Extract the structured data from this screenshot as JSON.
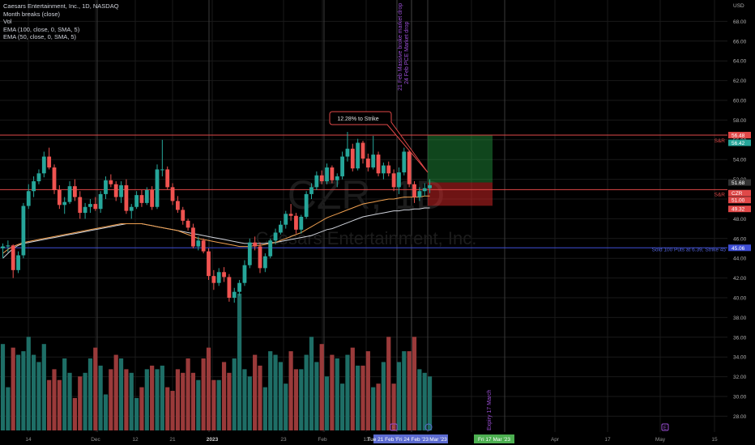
{
  "header": {
    "title": "Caesars Entertainment, Inc., 1D, NASDAQ",
    "indicators": [
      "Month breaks (close)",
      "Vol",
      "EMA (100, close, 0, SMA, 5)",
      "EMA (50, close, 0, SMA, 5)"
    ]
  },
  "watermark": {
    "symbol": "CZR, 1D",
    "name": "Caesars Entertainment, Inc."
  },
  "colors": {
    "background": "#000000",
    "up": "#26a69a",
    "down": "#ef5350",
    "grid": "#1a1a1a",
    "ema100": "#d1d4dc",
    "ema50": "#f0a050",
    "sr_line": "#e04848",
    "puts_line": "#3f4fd6",
    "month_break": "#3a3a3a",
    "annotation_purple": "#9c4fd6",
    "label_green": "#4caf50",
    "label_blue": "#5b6ad0"
  },
  "price_axis": {
    "currency": "USD",
    "ticks": [
      "28.00",
      "30.00",
      "32.00",
      "34.00",
      "36.00",
      "38.00",
      "40.00",
      "42.00",
      "44.00",
      "46.00",
      "48.00",
      "50.00",
      "52.00",
      "54.00",
      "56.00",
      "58.00",
      "60.00",
      "62.00",
      "64.00",
      "66.00",
      "68.00"
    ],
    "labels": [
      {
        "text": "56.48",
        "price": 56.48,
        "color": "#e04848"
      },
      {
        "text": "56.42",
        "price": 55.7,
        "color": "#26a69a"
      },
      {
        "text": "51.68",
        "price": 51.68,
        "color": "#333333"
      },
      {
        "text": "CZR",
        "price": 50.6,
        "color": "#e04848"
      },
      {
        "text": "51.00",
        "price": 49.9,
        "color": "#e04848"
      },
      {
        "text": "49.32",
        "price": 49.0,
        "color": "#e04848"
      },
      {
        "text": "45.06",
        "price": 45.06,
        "color": "#3f4fd6"
      }
    ]
  },
  "time_axis": {
    "ticks": [
      "14",
      "Dec",
      "12",
      "21",
      "2023",
      "23",
      "Feb",
      "13",
      "Apr",
      "17",
      "May",
      "15"
    ],
    "highlights": [
      "Tue 21 Feb '23",
      "Fri 24 Feb '23",
      "Mar '23",
      "Fri 17 Mar '23"
    ],
    "badges": [
      "E",
      "E"
    ]
  },
  "lines": {
    "sr_upper": {
      "price": 56.48,
      "label": "S&R"
    },
    "sr_lower": {
      "price": 50.95,
      "label": "S&R"
    },
    "puts": {
      "price": 45.06,
      "label": "Sold 100 Puts at 6.39, Strike 45"
    }
  },
  "annotations": {
    "callout": "12.28% to Strike",
    "event1": "21 Feb Massive broke market drop",
    "event2": "24 Feb PCE Market drop",
    "expiry": "Expiry 17 March"
  },
  "chart_data": {
    "type": "candlestick",
    "ylim": [
      27,
      70
    ],
    "candles": [
      [
        45.0,
        45.5,
        44.0,
        45.2
      ],
      [
        45.2,
        45.8,
        44.6,
        45.3
      ],
      [
        45.3,
        45.4,
        42.0,
        42.8
      ],
      [
        42.8,
        44.7,
        42.5,
        44.3
      ],
      [
        44.3,
        49.6,
        44.0,
        49.3
      ],
      [
        49.3,
        51.5,
        49.0,
        50.8
      ],
      [
        50.8,
        52.3,
        50.2,
        51.8
      ],
      [
        51.8,
        53.0,
        51.5,
        52.6
      ],
      [
        52.6,
        54.8,
        52.2,
        54.3
      ],
      [
        54.3,
        55.2,
        53.0,
        53.2
      ],
      [
        53.2,
        53.5,
        50.5,
        50.9
      ],
      [
        50.9,
        51.4,
        49.0,
        49.4
      ],
      [
        49.4,
        50.2,
        48.5,
        49.7
      ],
      [
        49.7,
        51.8,
        49.5,
        51.3
      ],
      [
        51.3,
        52.0,
        49.8,
        50.2
      ],
      [
        50.2,
        50.8,
        48.0,
        48.6
      ],
      [
        48.6,
        49.6,
        48.0,
        49.2
      ],
      [
        49.2,
        50.0,
        48.6,
        49.5
      ],
      [
        49.5,
        50.2,
        48.8,
        49.0
      ],
      [
        49.0,
        50.8,
        48.6,
        50.5
      ],
      [
        50.5,
        52.3,
        50.0,
        51.9
      ],
      [
        51.9,
        52.5,
        51.2,
        51.5
      ],
      [
        51.5,
        51.8,
        49.8,
        50.2
      ],
      [
        50.2,
        51.8,
        49.6,
        51.4
      ],
      [
        51.4,
        52.0,
        48.5,
        48.8
      ],
      [
        48.8,
        49.5,
        48.0,
        49.2
      ],
      [
        49.2,
        50.8,
        49.0,
        50.4
      ],
      [
        50.4,
        50.9,
        49.2,
        49.6
      ],
      [
        49.6,
        51.2,
        49.4,
        50.9
      ],
      [
        50.9,
        51.3,
        48.9,
        49.2
      ],
      [
        49.2,
        53.5,
        49.0,
        53.0
      ],
      [
        53.0,
        56.0,
        52.3,
        53.0
      ],
      [
        53.0,
        53.3,
        51.0,
        51.2
      ],
      [
        51.2,
        51.6,
        49.4,
        49.8
      ],
      [
        49.8,
        50.3,
        48.6,
        48.9
      ],
      [
        48.9,
        49.2,
        47.4,
        47.8
      ],
      [
        47.8,
        48.0,
        46.8,
        47.1
      ],
      [
        47.1,
        47.5,
        45.0,
        45.2
      ],
      [
        45.2,
        46.2,
        44.8,
        45.8
      ],
      [
        45.8,
        46.0,
        44.5,
        44.7
      ],
      [
        44.7,
        45.0,
        41.8,
        42.2
      ],
      [
        42.2,
        42.8,
        40.8,
        41.5
      ],
      [
        41.5,
        43.0,
        41.2,
        42.6
      ],
      [
        42.6,
        43.1,
        41.6,
        42.1
      ],
      [
        42.1,
        42.4,
        39.6,
        40.0
      ],
      [
        40.0,
        41.0,
        39.5,
        40.6
      ],
      [
        40.6,
        41.8,
        40.2,
        41.5
      ],
      [
        41.5,
        43.8,
        41.2,
        43.3
      ],
      [
        43.3,
        46.0,
        43.0,
        45.6
      ],
      [
        45.6,
        46.2,
        44.8,
        45.2
      ],
      [
        45.2,
        45.6,
        42.5,
        43.0
      ],
      [
        43.0,
        44.5,
        42.6,
        44.2
      ],
      [
        44.2,
        46.0,
        44.0,
        45.8
      ],
      [
        45.8,
        47.0,
        45.4,
        46.6
      ],
      [
        46.6,
        47.8,
        46.4,
        47.4
      ],
      [
        47.4,
        48.8,
        47.0,
        48.5
      ],
      [
        48.5,
        49.5,
        47.8,
        48.3
      ],
      [
        48.3,
        48.6,
        46.5,
        46.9
      ],
      [
        46.9,
        48.4,
        46.5,
        48.2
      ],
      [
        48.2,
        50.8,
        48.0,
        50.5
      ],
      [
        50.5,
        51.6,
        50.0,
        51.2
      ],
      [
        51.2,
        52.8,
        50.9,
        52.4
      ],
      [
        52.4,
        52.9,
        51.5,
        51.8
      ],
      [
        51.8,
        53.6,
        51.5,
        53.2
      ],
      [
        53.2,
        53.4,
        51.6,
        51.9
      ],
      [
        51.9,
        52.6,
        51.2,
        52.3
      ],
      [
        52.3,
        54.8,
        52.0,
        54.3
      ],
      [
        54.3,
        56.8,
        53.8,
        55.1
      ],
      [
        55.1,
        55.6,
        52.8,
        53.1
      ],
      [
        53.1,
        56.1,
        52.9,
        55.7
      ],
      [
        55.7,
        55.9,
        53.6,
        54.1
      ],
      [
        54.1,
        54.6,
        52.8,
        53.2
      ],
      [
        53.2,
        56.4,
        53.0,
        54.5
      ],
      [
        54.5,
        54.8,
        52.3,
        52.6
      ],
      [
        52.6,
        53.7,
        52.0,
        53.4
      ],
      [
        53.4,
        53.8,
        52.3,
        52.6
      ],
      [
        52.6,
        53.0,
        50.8,
        51.2
      ],
      [
        51.2,
        53.2,
        50.5,
        52.7
      ],
      [
        52.7,
        55.2,
        52.4,
        54.8
      ],
      [
        54.8,
        55.1,
        51.2,
        51.5
      ],
      [
        51.5,
        51.8,
        49.6,
        50.2
      ],
      [
        50.2,
        51.2,
        49.8,
        50.8
      ],
      [
        50.8,
        51.6,
        50.3,
        51.1
      ],
      [
        51.1,
        52.0,
        50.6,
        51.4
      ]
    ],
    "volume": [
      24,
      12,
      23,
      21,
      22,
      26,
      21,
      19,
      24,
      14,
      17,
      14,
      20,
      16,
      9,
      15,
      16,
      20,
      23,
      18,
      10,
      17,
      21,
      20,
      17,
      16,
      9,
      12,
      17,
      18,
      17,
      18,
      12,
      11,
      17,
      16,
      20,
      16,
      14,
      20,
      23,
      14,
      14,
      19,
      16,
      20,
      38,
      17,
      15,
      21,
      18,
      12,
      22,
      21,
      19,
      13,
      22,
      17,
      17,
      21,
      26,
      19,
      24,
      15,
      21,
      20,
      13,
      21,
      23,
      18,
      18,
      22,
      12,
      13,
      19,
      26,
      13,
      19,
      22,
      22,
      26,
      17,
      16,
      15
    ],
    "ema50": [
      44.5,
      44.9,
      45.2,
      45.4,
      45.6,
      45.7,
      45.8,
      45.9,
      46.0,
      46.1,
      46.2,
      46.3,
      46.4,
      46.5,
      46.6,
      46.7,
      46.8,
      46.9,
      47.0,
      47.1,
      47.2,
      47.3,
      47.4,
      47.5,
      47.5,
      47.5,
      47.5,
      47.5,
      47.4,
      47.3,
      47.2,
      47.1,
      47.0,
      46.9,
      46.8,
      46.6,
      46.4,
      46.2,
      46.0,
      45.9,
      45.8,
      45.7,
      45.6,
      45.5,
      45.4,
      45.3,
      45.2,
      45.2,
      45.2,
      45.3,
      45.3,
      45.4,
      45.5,
      45.6,
      45.8,
      46.0,
      46.2,
      46.4,
      46.6,
      46.9,
      47.2,
      47.5,
      47.8,
      48.1,
      48.3,
      48.5,
      48.7,
      48.9,
      49.1,
      49.3,
      49.5,
      49.6,
      49.7,
      49.8,
      49.9,
      50.0,
      50.0,
      50.1,
      50.2,
      50.2,
      50.2,
      50.2,
      50.3,
      50.3
    ],
    "ema100": [
      44.0,
      44.5,
      45.0,
      45.3,
      45.5,
      45.6,
      45.7,
      45.8,
      45.9,
      46.0,
      46.1,
      46.2,
      46.3,
      46.4,
      46.5,
      46.6,
      46.7,
      46.8,
      46.9,
      47.0,
      47.1,
      47.2,
      47.3,
      47.4,
      47.5,
      47.5,
      47.5,
      47.5,
      47.4,
      47.3,
      47.2,
      47.1,
      47.0,
      46.9,
      46.8,
      46.7,
      46.6,
      46.5,
      46.4,
      46.3,
      46.2,
      46.1,
      46.0,
      45.9,
      45.8,
      45.7,
      45.6,
      45.5,
      45.5,
      45.5,
      45.5,
      45.5,
      45.6,
      45.6,
      45.7,
      45.8,
      45.9,
      46.0,
      46.1,
      46.2,
      46.3,
      46.5,
      46.7,
      46.9,
      47.0,
      47.2,
      47.4,
      47.6,
      47.8,
      48.0,
      48.2,
      48.3,
      48.4,
      48.5,
      48.6,
      48.7,
      48.8,
      48.8,
      48.9,
      48.9,
      49.0,
      49.0,
      49.1,
      49.1
    ],
    "trade_box": {
      "target_price": 56.48,
      "entry_price": 51.68,
      "stop_price": 49.32
    }
  }
}
